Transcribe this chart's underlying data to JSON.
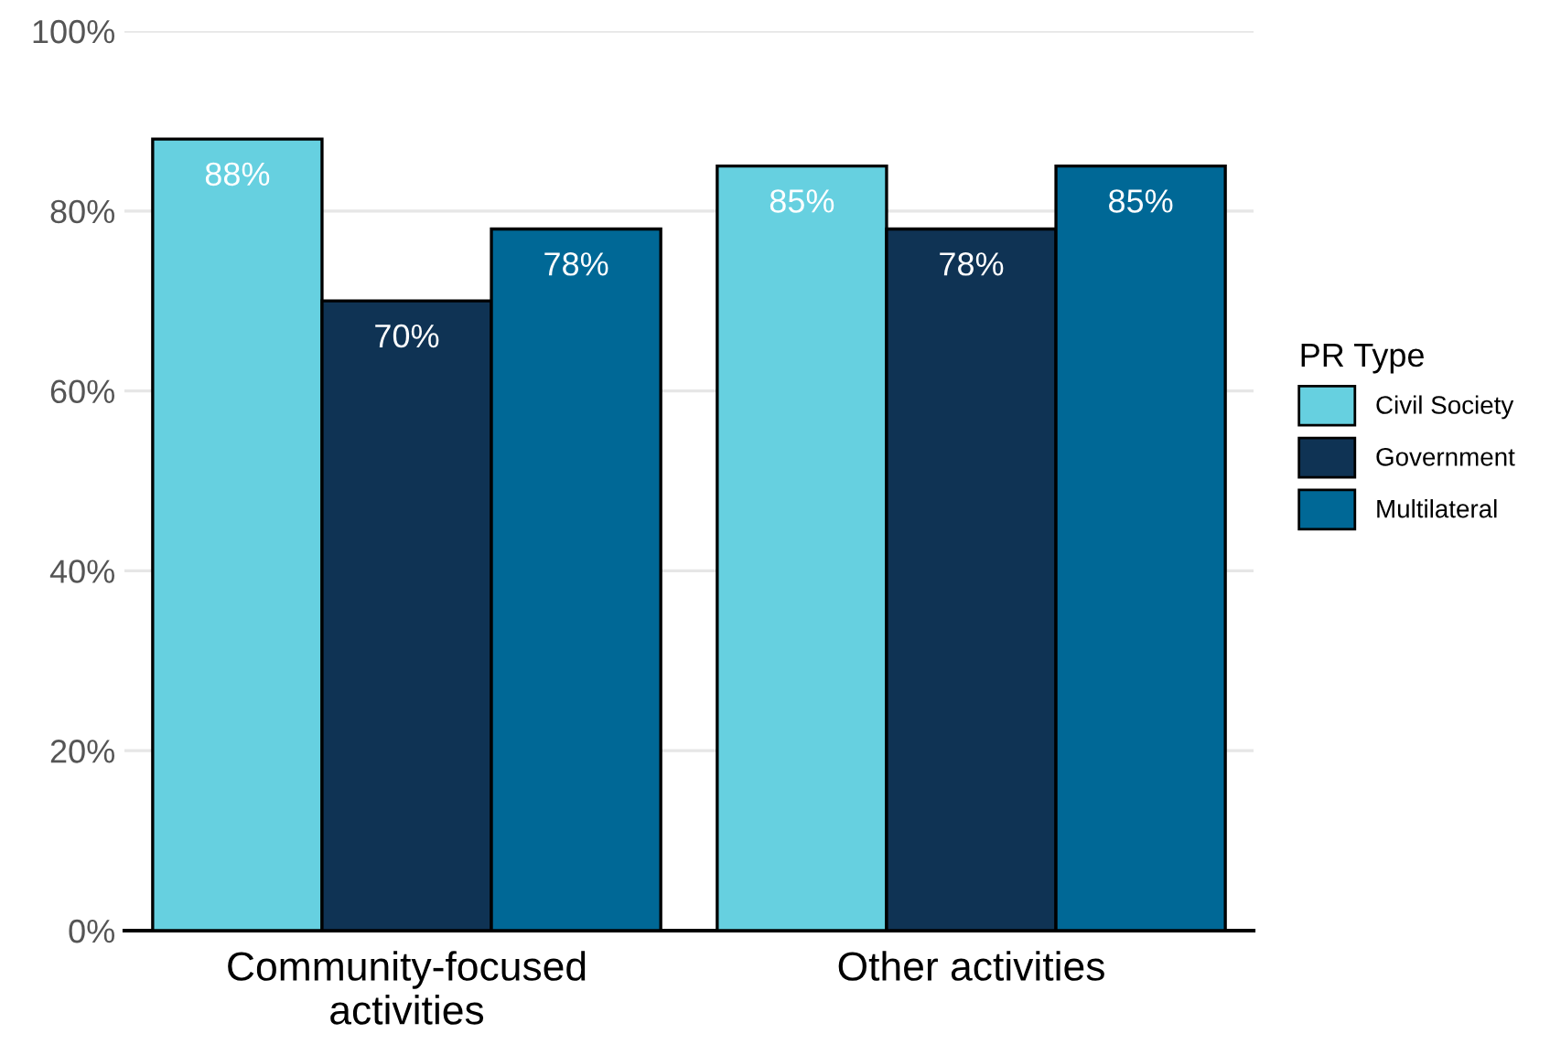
{
  "chart_data": {
    "type": "bar",
    "categories": [
      "Community-focused\nactivities",
      "Other activities"
    ],
    "series": [
      {
        "name": "Civil Society",
        "color": "#66d0e0",
        "values": [
          88,
          85
        ],
        "value_labels": [
          "88%",
          "85%"
        ]
      },
      {
        "name": "Government",
        "color": "#0f3354",
        "values": [
          70,
          78
        ],
        "value_labels": [
          "70%",
          "78%"
        ]
      },
      {
        "name": "Multilateral",
        "color": "#006896",
        "values": [
          78,
          85
        ],
        "value_labels": [
          "78%",
          "85%"
        ]
      }
    ],
    "legend_title": "PR Type",
    "legend": "right",
    "grid": "y",
    "ylim": [
      0,
      100
    ],
    "yticks": [
      {
        "value": 0,
        "label": "0%"
      },
      {
        "value": 20,
        "label": "20%"
      },
      {
        "value": 40,
        "label": "40%"
      },
      {
        "value": 60,
        "label": "60%"
      },
      {
        "value": 80,
        "label": "80%"
      },
      {
        "value": 100,
        "label": "100%"
      }
    ]
  }
}
